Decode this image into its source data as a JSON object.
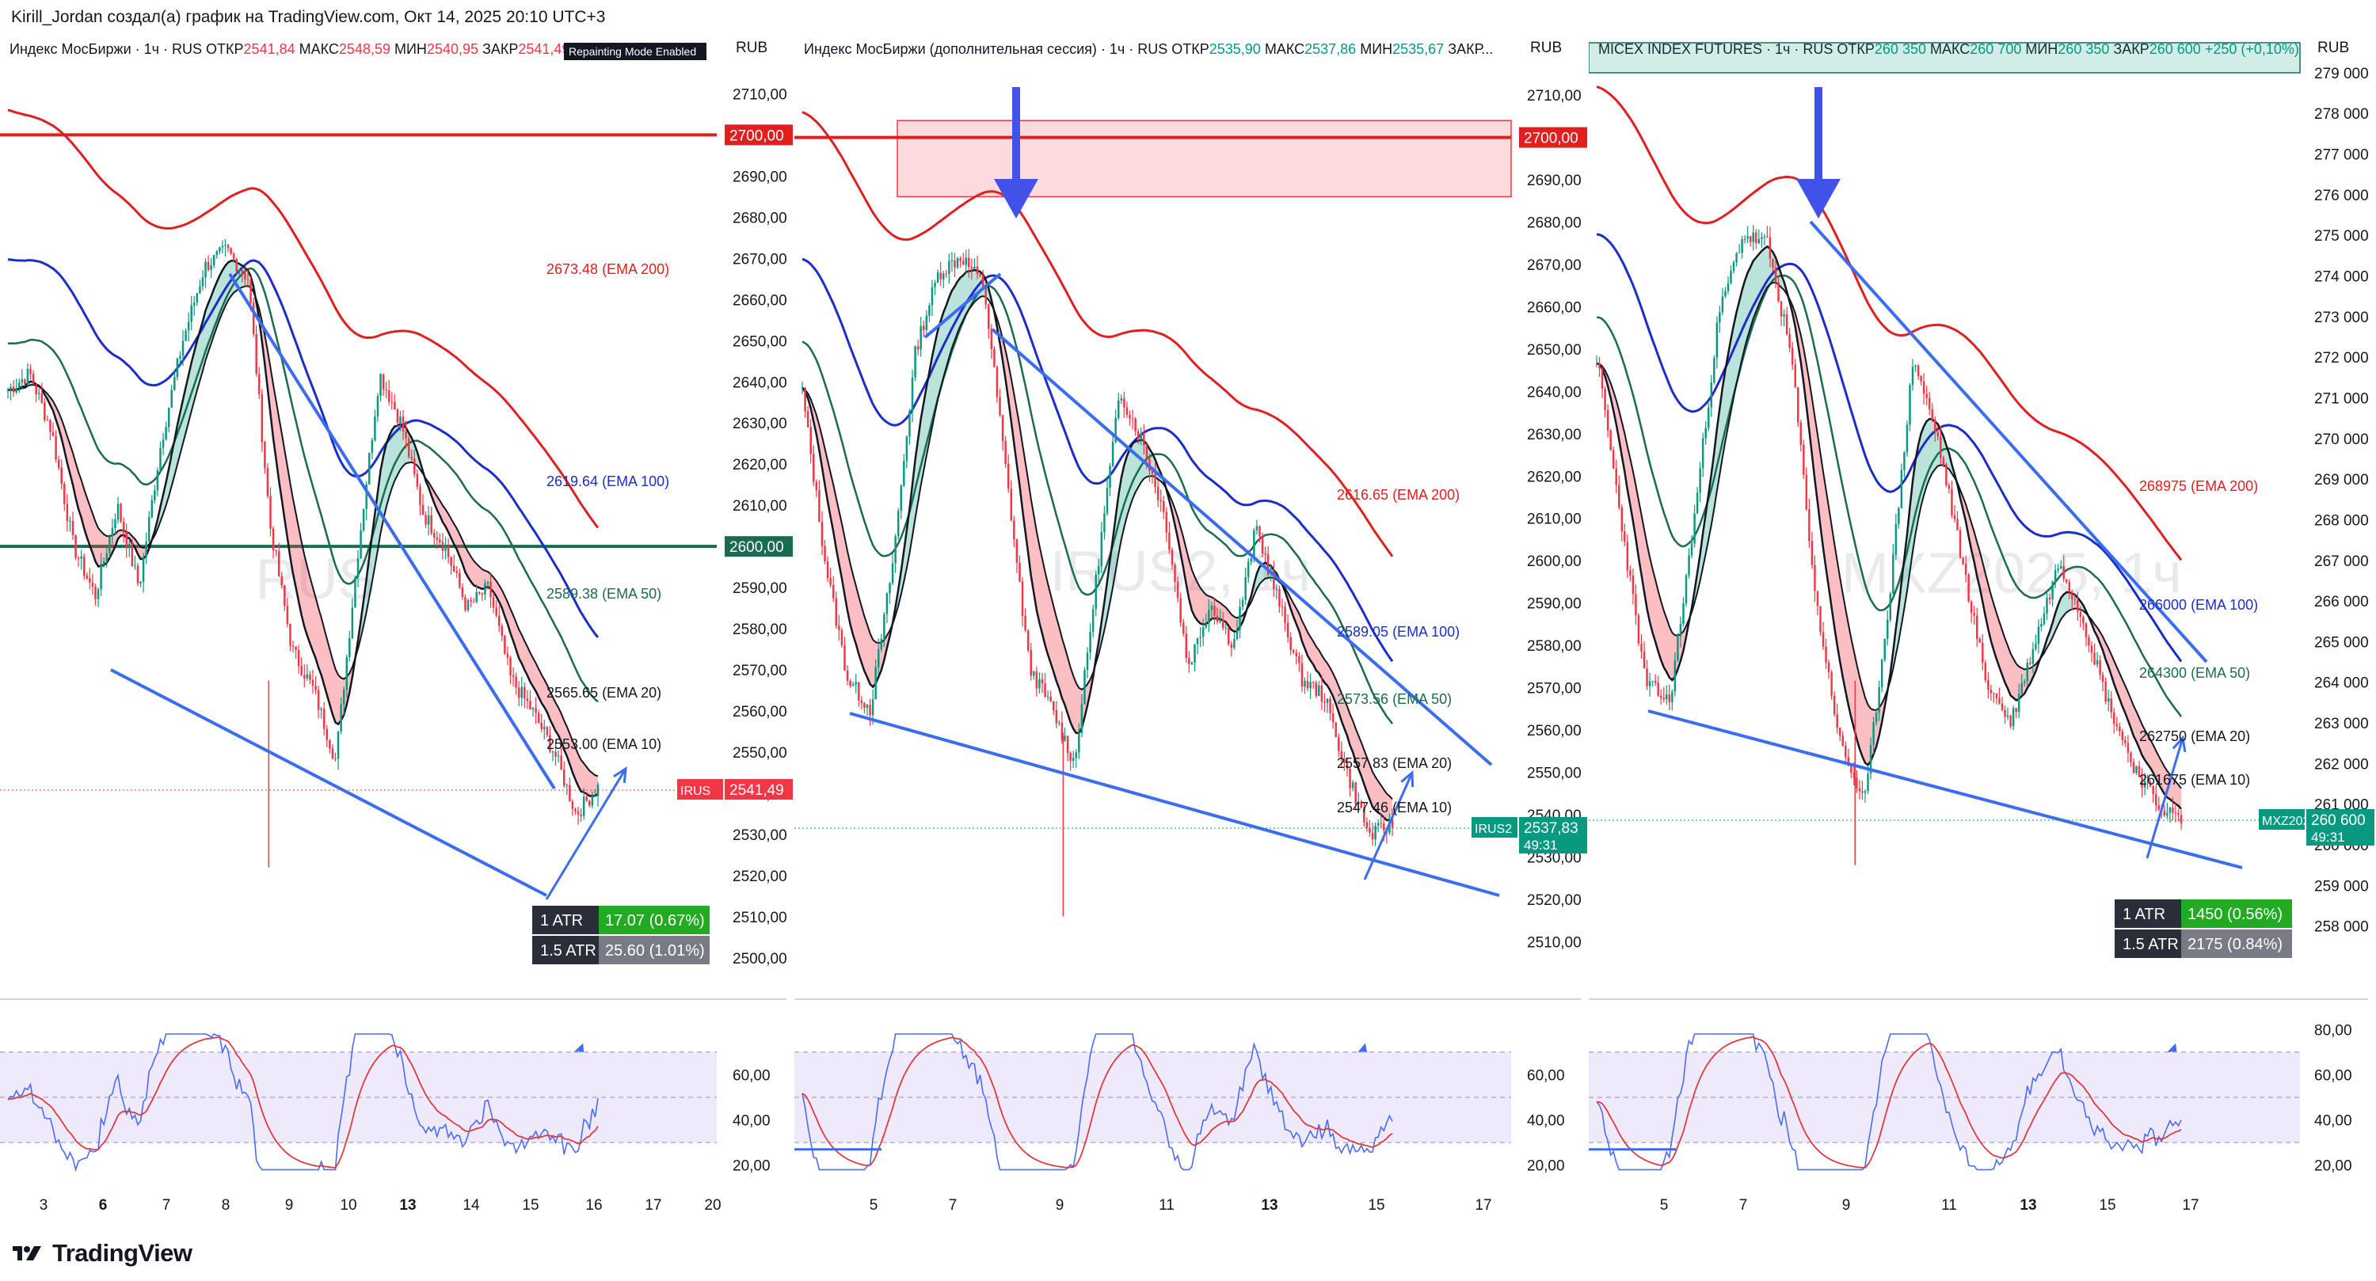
{
  "creator": "Kirill_Jordan создал(а) график на TradingView.com, Окт 14, 2025 20:10 UTC+3",
  "footer_brand": "TradingView",
  "colors": {
    "up": "#089981",
    "down": "#f23645",
    "ema200": "#e01f1f",
    "ema100": "#1c2ec9",
    "ema50": "#1b6b52",
    "ema10": "#131722",
    "trend": "#3a6df0",
    "osc": "#4a6cf7",
    "signal": "#e0393f",
    "rsi_band": "#efeafb"
  },
  "panels": [
    {
      "header": {
        "name": "Индекс МосБиржи · 1ч · RUS",
        "o_label": "ОТКР",
        "o": "2541,84",
        "h_label": "МАКС",
        "h": "2548,59",
        "l_label": "МИН",
        "l": "2540,95",
        "c_label": "ЗАКР",
        "c": "2541,49"
      },
      "badge": "Repainting Mode Enabled",
      "currency": "RUB",
      "watermark": "RUS",
      "y_ticks": [
        "2710,00",
        "2700,00",
        "2690,00",
        "2680,00",
        "2670,00",
        "2660,00",
        "2650,00",
        "2640,00",
        "2630,00",
        "2620,00",
        "2610,00",
        "2600,00",
        "2590,00",
        "2580,00",
        "2570,00",
        "2560,00",
        "2550,00",
        "2540,00",
        "2530,00",
        "2520,00",
        "2510,00",
        "2500,00"
      ],
      "x_ticks": [
        "3",
        "6",
        "7",
        "8",
        "9",
        "10",
        "13",
        "14",
        "15",
        "16",
        "17",
        "20"
      ],
      "x_bold": [
        "6",
        "13"
      ],
      "level_tags": [
        {
          "text": "2700,00",
          "color": "#e01f1f"
        },
        {
          "text": "2600,00",
          "color": "#1b6b52"
        }
      ],
      "price_tag": {
        "symbol": "IRUS",
        "price": "2541,49",
        "timer": "",
        "color": "#f23645"
      },
      "ema_labels": [
        {
          "text": "2673.48 (EMA 200)",
          "color": "#e01f1f"
        },
        {
          "text": "2619.64 (EMA 100)",
          "color": "#1c2ec9"
        },
        {
          "text": "2589.38 (EMA 50)",
          "color": "#1b6b52"
        },
        {
          "text": "2565.65 (EMA 20)",
          "color": "#131722"
        },
        {
          "text": "2553.00 (EMA 10)",
          "color": "#131722"
        }
      ],
      "atr": [
        {
          "label": "1 ATR",
          "value": "17.07 (0.67%)",
          "color": "#22ab22"
        },
        {
          "label": "1.5 ATR",
          "value": "25.60 (1.01%)",
          "color": "#787b86"
        }
      ],
      "rsi_ticks": [
        "60,00",
        "40,00",
        "20,00"
      ]
    },
    {
      "header": {
        "name": "Индекс МосБиржи (дополнительная сессия) · 1ч · RUS",
        "o_label": "ОТКР",
        "o": "2535,90",
        "h_label": "МАКС",
        "h": "2537,86",
        "l_label": "МИН",
        "l": "2535,67",
        "c_label": "ЗАКР...",
        "c": ""
      },
      "badge": "",
      "currency": "RUB",
      "watermark": "IRUS2, 1ч",
      "y_ticks": [
        "2710,00",
        "2700,00",
        "2690,00",
        "2680,00",
        "2670,00",
        "2660,00",
        "2650,00",
        "2640,00",
        "2630,00",
        "2620,00",
        "2610,00",
        "2600,00",
        "2590,00",
        "2580,00",
        "2570,00",
        "2560,00",
        "2550,00",
        "2540,00",
        "2530,00",
        "2520,00",
        "2510,00"
      ],
      "x_ticks": [
        "5",
        "7",
        "9",
        "11",
        "13",
        "15",
        "17"
      ],
      "x_bold": [
        "13"
      ],
      "level_tags": [
        {
          "text": "2700,00",
          "color": "#e01f1f"
        }
      ],
      "price_tag": {
        "symbol": "IRUS2",
        "price": "2537,83",
        "timer": "49:31",
        "color": "#089981"
      },
      "ema_labels": [
        {
          "text": "2616.65 (EMA 200)",
          "color": "#e01f1f"
        },
        {
          "text": "2589.05 (EMA 100)",
          "color": "#1c2ec9"
        },
        {
          "text": "2573.56 (EMA 50)",
          "color": "#1b6b52"
        },
        {
          "text": "2557.83 (EMA 20)",
          "color": "#131722"
        },
        {
          "text": "2547.46 (EMA 10)",
          "color": "#131722"
        }
      ],
      "atr": [],
      "rsi_ticks": [
        "60,00",
        "40,00",
        "20,00"
      ]
    },
    {
      "header": {
        "name": "MICEX INDEX FUTURES · 1ч · RUS",
        "o_label": "ОТКР",
        "o": "260 350",
        "h_label": "МАКС",
        "h": "260 700",
        "l_label": "МИН",
        "l": "260 350",
        "c_label": "ЗАКР",
        "c": "260 600",
        "chg": "+250 (+0,10%)"
      },
      "badge": "",
      "currency": "RUB",
      "watermark": "MXZ2025, 1ч",
      "y_ticks": [
        "279 000",
        "278 000",
        "277 000",
        "276 000",
        "275 000",
        "274 000",
        "273 000",
        "272 000",
        "271 000",
        "270 000",
        "269 000",
        "268 000",
        "267 000",
        "266 000",
        "265 000",
        "264 000",
        "263 000",
        "262 000",
        "261 000",
        "260 000",
        "259 000",
        "258 000"
      ],
      "x_ticks": [
        "5",
        "7",
        "9",
        "11",
        "13",
        "15",
        "17"
      ],
      "x_bold": [
        "13"
      ],
      "level_tags": [],
      "price_tag": {
        "symbol": "MXZ2025",
        "price": "260 600",
        "timer": "49:31",
        "color": "#089981"
      },
      "ema_labels": [
        {
          "text": "268975 (EMA 200)",
          "color": "#e01f1f"
        },
        {
          "text": "266000 (EMA 100)",
          "color": "#1c2ec9"
        },
        {
          "text": "264300 (EMA 50)",
          "color": "#1b6b52"
        },
        {
          "text": "262750 (EMA 20)",
          "color": "#131722"
        },
        {
          "text": "261675 (EMA 10)",
          "color": "#131722"
        }
      ],
      "atr": [
        {
          "label": "1 ATR",
          "value": "1450 (0.56%)",
          "color": "#22ab22"
        },
        {
          "label": "1.5 ATR",
          "value": "2175 (0.84%)",
          "color": "#787b86"
        }
      ],
      "rsi_ticks": [
        "80,00",
        "60,00",
        "40,00",
        "20,00"
      ]
    }
  ],
  "chart_data": [
    {
      "type": "candlestick",
      "title": "Индекс МосБиржи · 1ч · RUS",
      "currency": "RUB",
      "ylim": [
        2495,
        2722
      ],
      "x": [
        "3",
        "6",
        "7",
        "8",
        "9",
        "10",
        "13",
        "14",
        "15"
      ],
      "close_path": [
        2638,
        2642,
        2628,
        2600,
        2588,
        2610,
        2590,
        2625,
        2650,
        2668,
        2672,
        2665,
        2605,
        2575,
        2565,
        2548,
        2598,
        2642,
        2630,
        2608,
        2600,
        2585,
        2590,
        2568,
        2560,
        2550,
        2535,
        2541.49
      ],
      "high_low": {
        "high": 2677,
        "low": 2522
      },
      "ema": {
        "EMA 200": 2673.48,
        "EMA 100": 2619.64,
        "EMA 50": 2589.38,
        "EMA 20": 2565.65,
        "EMA 10": 2553.0
      },
      "levels": [
        2700,
        2600
      ],
      "trendlines": {
        "upper_from": 2677,
        "upper_to": 2560,
        "lower_from": 2581,
        "lower_to": 2525
      },
      "rsi": {
        "bands": [
          30,
          70
        ],
        "last": 38
      }
    },
    {
      "type": "candlestick",
      "title": "Индекс МосБиржи (дополнительная сессия) · 1ч · RUS",
      "currency": "RUB",
      "ylim": [
        2505,
        2722
      ],
      "x": [
        "5",
        "7",
        "9",
        "11",
        "13",
        "15"
      ],
      "close_path": [
        2640,
        2600,
        2572,
        2565,
        2600,
        2650,
        2668,
        2672,
        2665,
        2620,
        2575,
        2565,
        2552,
        2598,
        2640,
        2628,
        2610,
        2575,
        2590,
        2580,
        2608,
        2590,
        2572,
        2568,
        2550,
        2535,
        2537.83
      ],
      "high_low": {
        "high": 2673,
        "low": 2516
      },
      "ema": {
        "EMA 200": 2616.65,
        "EMA 100": 2589.05,
        "EMA 50": 2573.56,
        "EMA 20": 2557.83,
        "EMA 10": 2547.46
      },
      "levels": [
        2700
      ],
      "zone": [
        2686,
        2704
      ],
      "trendlines": {
        "upper_from": 2674,
        "upper_to": 2553,
        "lower_from": 2563,
        "lower_to": 2523
      },
      "rsi": {
        "bands": [
          30,
          70
        ],
        "last": 35
      }
    },
    {
      "type": "candlestick",
      "title": "MICEX INDEX FUTURES · 1ч · RUS",
      "currency": "RUB",
      "ylim": [
        257000,
        279700
      ],
      "x": [
        "5",
        "7",
        "9",
        "11",
        "13",
        "15"
      ],
      "close_path": [
        272000,
        268000,
        264000,
        263500,
        268000,
        273000,
        275000,
        274800,
        272000,
        266000,
        262500,
        261000,
        266000,
        272000,
        270000,
        267000,
        264000,
        263000,
        265000,
        267000,
        265500,
        263500,
        262000,
        261000,
        260600
      ],
      "high_low": {
        "high": 275300,
        "low": 259500
      },
      "ema": {
        "EMA 200": 268975,
        "EMA 100": 266000,
        "EMA 50": 264300,
        "EMA 20": 262750,
        "EMA 10": 261675
      },
      "zone": [
        279000,
        280500
      ],
      "trendlines": {
        "upper_from": 275400,
        "upper_to": 265000,
        "lower_from": 263600,
        "lower_to": 259700
      },
      "rsi": {
        "bands": [
          30,
          70
        ],
        "last": 36
      }
    }
  ]
}
